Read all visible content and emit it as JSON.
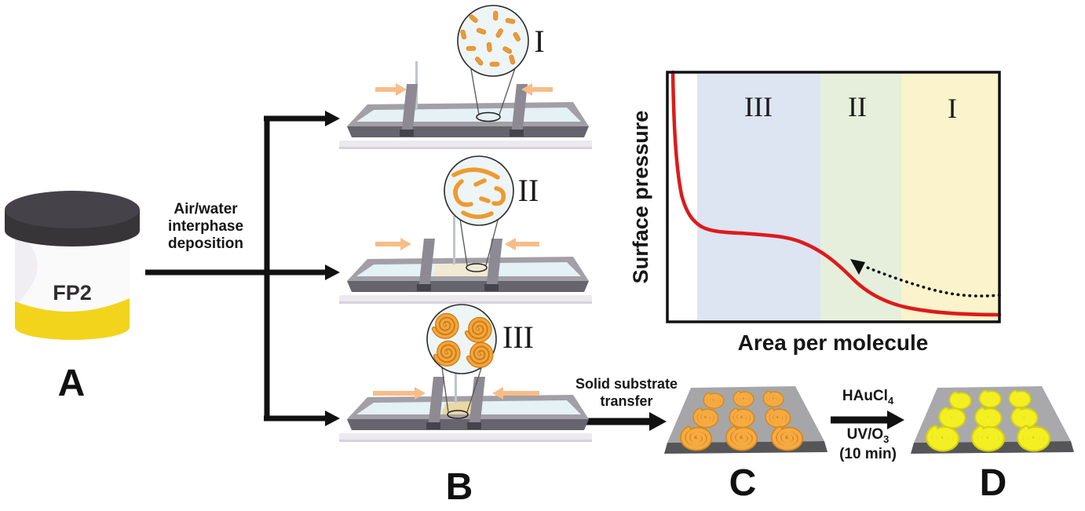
{
  "panel_a": {
    "label": "A",
    "vial_label": "FP2"
  },
  "deposition": {
    "text": "Air/water\ninterphase\ndeposition"
  },
  "panel_b": {
    "label": "B",
    "stages": [
      {
        "numeral": "I"
      },
      {
        "numeral": "II"
      },
      {
        "numeral": "III"
      }
    ]
  },
  "transfer": {
    "text": "Solid substrate\ntransfer"
  },
  "panel_c": {
    "label": "C"
  },
  "reaction": {
    "reagent": "HAuCl",
    "reagent_sub": "4",
    "treatment": "UV/O",
    "treatment_sub": "3",
    "duration": "(10 min)"
  },
  "panel_d": {
    "label": "D"
  },
  "chart_data": {
    "type": "line",
    "title": "",
    "xlabel": "Area per molecule",
    "ylabel": "Surface pressure",
    "axes_numeric": false,
    "grid": false,
    "regions": [
      {
        "label": "III",
        "x_start": 0.09,
        "x_end": 0.46,
        "color": "#dde4f2"
      },
      {
        "label": "II",
        "x_start": 0.46,
        "x_end": 0.7,
        "color": "#e5efdb"
      },
      {
        "label": "I",
        "x_start": 0.7,
        "x_end": 1.0,
        "color": "#faf3cb"
      }
    ],
    "series": [
      {
        "name": "surface-pressure isotherm",
        "color": "#dc1b1b",
        "points": [
          [
            0.02,
            1.0
          ],
          [
            0.04,
            0.72
          ],
          [
            0.06,
            0.52
          ],
          [
            0.08,
            0.42
          ],
          [
            0.11,
            0.375
          ],
          [
            0.18,
            0.36
          ],
          [
            0.28,
            0.35
          ],
          [
            0.38,
            0.325
          ],
          [
            0.46,
            0.28
          ],
          [
            0.54,
            0.2
          ],
          [
            0.62,
            0.125
          ],
          [
            0.7,
            0.075
          ],
          [
            0.8,
            0.045
          ],
          [
            0.9,
            0.032
          ],
          [
            1.0,
            0.03
          ]
        ]
      }
    ],
    "annotation_arrow": {
      "style": "dotted",
      "from_x": 1.0,
      "to_x": 0.58,
      "direction": "right-to-left"
    }
  },
  "colors": {
    "isotherm_red": "#dc1b1b",
    "region_iii_blue": "#dde4f2",
    "region_ii_green": "#e5efdb",
    "region_i_yellow": "#faf3cb",
    "molecule_orange": "#ef9a33",
    "gold_film_yellow": "#f2ee1e",
    "vial_cap_black": "#3a373c",
    "vial_band_yellow": "#f3d41c",
    "compression_arrow_orange": "#f7bd88",
    "substrate_gray": "#a7a7a9",
    "water_blue": "#e4f1f5"
  }
}
